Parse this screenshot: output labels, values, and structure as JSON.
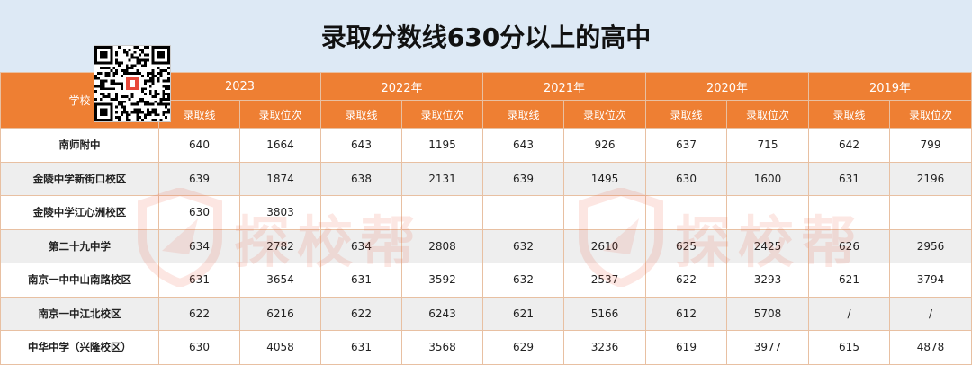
{
  "title": "录取分数线630分以上的高中",
  "header": {
    "school_label": "学校",
    "years": [
      "2023",
      "2022年",
      "2021年",
      "2020年",
      "2019年"
    ],
    "sub_labels": {
      "score": "录取线",
      "rank": "录取位次"
    }
  },
  "rows": [
    {
      "school": "南师附中",
      "cells": [
        "640",
        "1664",
        "643",
        "1195",
        "643",
        "926",
        "637",
        "715",
        "642",
        "799"
      ]
    },
    {
      "school": "金陵中学新街口校区",
      "cells": [
        "639",
        "1874",
        "638",
        "2131",
        "639",
        "1495",
        "630",
        "1600",
        "631",
        "2196"
      ]
    },
    {
      "school": "金陵中学江心洲校区",
      "cells": [
        "630",
        "3803",
        "",
        "",
        "",
        "",
        "",
        "",
        "",
        ""
      ]
    },
    {
      "school": "第二十九中学",
      "cells": [
        "634",
        "2782",
        "634",
        "2808",
        "632",
        "2610",
        "625",
        "2425",
        "626",
        "2956"
      ]
    },
    {
      "school": "南京一中中山南路校区",
      "cells": [
        "631",
        "3654",
        "631",
        "3592",
        "632",
        "2537",
        "622",
        "3293",
        "621",
        "3794"
      ]
    },
    {
      "school": "南京一中江北校区",
      "cells": [
        "622",
        "6216",
        "622",
        "6243",
        "621",
        "5166",
        "612",
        "5708",
        "/",
        "/"
      ]
    },
    {
      "school": "中华中学（兴隆校区）",
      "cells": [
        "630",
        "4058",
        "631",
        "3568",
        "629",
        "3236",
        "619",
        "3977",
        "615",
        "4878"
      ]
    }
  ],
  "watermark": {
    "text": "探校帮"
  },
  "icons": {
    "qr": "qr-code-icon",
    "watermark_logo": "shield-logo-icon"
  },
  "colors": {
    "header_orange": "#ee7f33",
    "title_bg": "#dde9f5",
    "stripe": "#eeeeee"
  }
}
